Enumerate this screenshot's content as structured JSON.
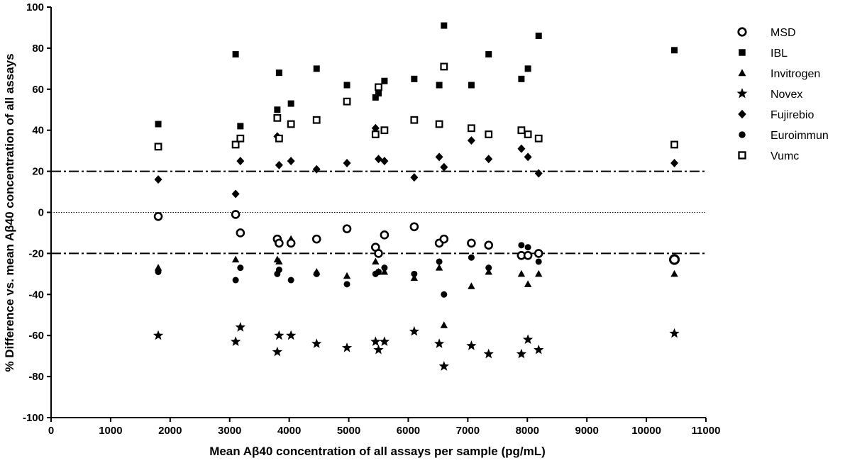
{
  "chart_data": {
    "type": "scatter",
    "title": "",
    "xlabel": "Mean Aβ40 concentration of all assays per sample (pg/mL)",
    "ylabel": "% Difference vs. mean Aβ40 concentration of all assays",
    "xlim": [
      0,
      11000
    ],
    "ylim": [
      -100,
      100
    ],
    "x_ticks": [
      0,
      1000,
      2000,
      3000,
      4000,
      5000,
      6000,
      7000,
      8000,
      9000,
      10000,
      11000
    ],
    "y_ticks": [
      -100,
      -80,
      -60,
      -40,
      -20,
      0,
      20,
      40,
      60,
      80,
      100
    ],
    "reference_lines": [
      {
        "y": 20,
        "style": "dash-dot"
      },
      {
        "y": 0,
        "style": "dotted"
      },
      {
        "y": -20,
        "style": "dash-dot"
      }
    ],
    "grid": false,
    "legend_position": "right",
    "samples_x": [
      1800,
      3100,
      3180,
      3800,
      3830,
      4030,
      4460,
      4970,
      5450,
      5500,
      5600,
      6100,
      6520,
      6600,
      7060,
      7350,
      7900,
      8010,
      8190,
      10470
    ],
    "series": [
      {
        "name": "MSD",
        "marker": "open-circle",
        "values": [
          -2,
          -1,
          -10,
          -13,
          -15,
          -15,
          -13,
          -8,
          -17,
          -20,
          -11,
          -7,
          -15,
          -13,
          -15,
          -16,
          -21,
          -21,
          -20,
          -23
        ]
      },
      {
        "name": "IBL",
        "marker": "filled-square",
        "values": [
          43,
          77,
          42,
          50,
          68,
          53,
          70,
          62,
          56,
          58,
          64,
          65,
          62,
          91,
          62,
          77,
          65,
          70,
          86,
          79
        ]
      },
      {
        "name": "Invitrogen",
        "marker": "filled-triangle",
        "values": [
          -27,
          -23,
          -10,
          -23,
          -24,
          -13,
          -29,
          -31,
          -24,
          -29,
          -29,
          -32,
          -27,
          -55,
          -36,
          -29,
          -30,
          -35,
          -30,
          -30
        ]
      },
      {
        "name": "Novex",
        "marker": "filled-star",
        "values": [
          -60,
          -63,
          -56,
          -68,
          -60,
          -60,
          -64,
          -66,
          -63,
          -67,
          -63,
          -58,
          -64,
          -75,
          -65,
          -69,
          -69,
          -62,
          -67,
          -59
        ]
      },
      {
        "name": "Fujirebio",
        "marker": "filled-diamond",
        "values": [
          16,
          9,
          25,
          37,
          23,
          25,
          21,
          24,
          41,
          26,
          25,
          17,
          27,
          22,
          35,
          26,
          31,
          27,
          19,
          24
        ]
      },
      {
        "name": "Euroimmun",
        "marker": "filled-circle",
        "values": [
          -29,
          -33,
          -27,
          -30,
          -28,
          -33,
          -30,
          -35,
          -30,
          -29,
          -27,
          -30,
          -24,
          -40,
          -22,
          -27,
          -16,
          -17,
          -24,
          -23
        ]
      },
      {
        "name": "Vumc",
        "marker": "open-square",
        "values": [
          32,
          33,
          36,
          46,
          36,
          43,
          45,
          54,
          38,
          61,
          40,
          45,
          43,
          71,
          41,
          38,
          40,
          38,
          36,
          33
        ]
      }
    ]
  }
}
